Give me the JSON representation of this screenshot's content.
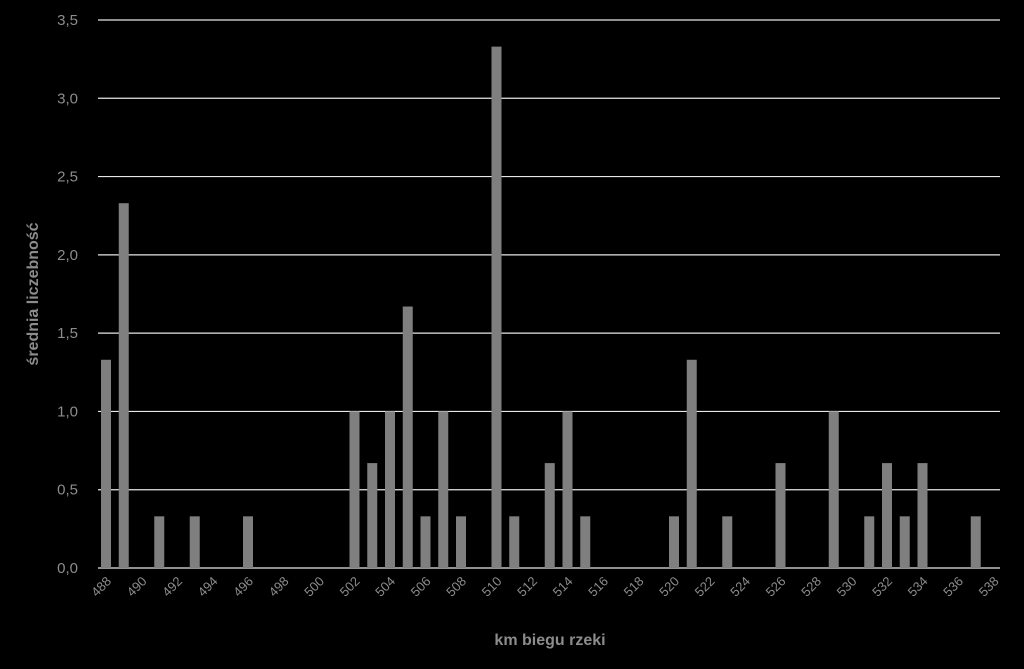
{
  "chart_data": {
    "type": "bar",
    "xlabel": "km biegu rzeki",
    "ylabel": "średnia liczebność",
    "ylim": [
      0,
      3.5
    ],
    "y_ticks": [
      "0,0",
      "0,5",
      "1,0",
      "1,5",
      "2,0",
      "2,5",
      "3,0",
      "3,5"
    ],
    "grid": true,
    "bar_color": "#7f7f7f",
    "categories": [
      "488",
      "489",
      "490",
      "491",
      "492",
      "493",
      "494",
      "495",
      "496",
      "497",
      "498",
      "499",
      "500",
      "501",
      "502",
      "503",
      "504",
      "505",
      "506",
      "507",
      "508",
      "509",
      "510",
      "511",
      "512",
      "513",
      "514",
      "515",
      "516",
      "517",
      "518",
      "519",
      "520",
      "521",
      "522",
      "523",
      "524",
      "525",
      "526",
      "527",
      "528",
      "529",
      "530",
      "531",
      "532",
      "533",
      "534",
      "535",
      "536",
      "537",
      "538"
    ],
    "tick_labels": [
      "488",
      "490",
      "492",
      "494",
      "496",
      "498",
      "500",
      "502",
      "504",
      "506",
      "508",
      "510",
      "512",
      "514",
      "516",
      "518",
      "520",
      "522",
      "524",
      "526",
      "528",
      "530",
      "532",
      "534",
      "536",
      "538"
    ],
    "values": [
      1.33,
      2.33,
      0,
      0.33,
      0,
      0.33,
      0,
      0,
      0.33,
      0,
      0,
      0,
      0,
      0,
      1.0,
      0.67,
      1.0,
      1.67,
      0.33,
      1.0,
      0.33,
      0,
      3.33,
      0.33,
      0,
      0.67,
      1.0,
      0.33,
      0,
      0,
      0,
      0,
      0.33,
      1.33,
      0,
      0.33,
      0,
      0,
      0.67,
      0,
      0,
      1.0,
      0,
      0.33,
      0.67,
      0.33,
      0.67,
      0,
      0,
      0.33,
      0
    ]
  }
}
